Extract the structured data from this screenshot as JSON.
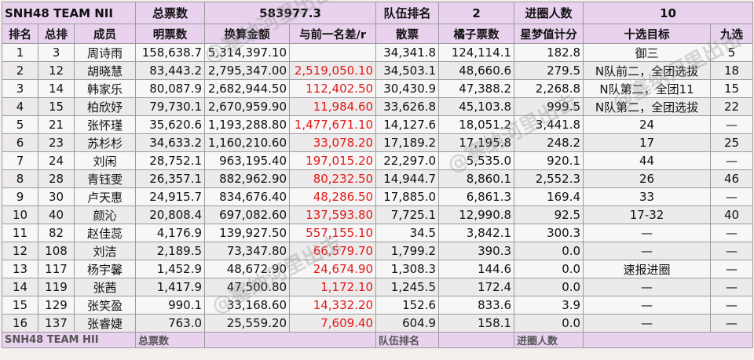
{
  "summary": {
    "team": "SNH48 TEAM NII",
    "total_votes_label": "总票数",
    "total_votes_value": "583977.3",
    "rank_label": "队伍排名",
    "rank_value": "2",
    "entered_label": "进圈人数",
    "entered_value": "10"
  },
  "columns": [
    "排名",
    "总排",
    "成员",
    "明票数",
    "换算金额",
    "与前一名差/r",
    "散票",
    "橘子票数",
    "星梦值计分",
    "十选目标",
    "九选"
  ],
  "rows": [
    [
      "1",
      "3",
      "周诗雨",
      "158,638.7",
      "5,314,397.10",
      "",
      "34,341.8",
      "124,114.1",
      "182.8",
      "御三",
      "5"
    ],
    [
      "2",
      "12",
      "胡晓慧",
      "83,443.2",
      "2,795,347.00",
      "2,519,050.10",
      "34,503.1",
      "48,660.6",
      "279.5",
      "N队前二，全团选拔",
      "18"
    ],
    [
      "3",
      "14",
      "韩家乐",
      "80,087.9",
      "2,682,944.50",
      "112,402.50",
      "30,430.9",
      "47,388.2",
      "2,268.8",
      "N队第二，全团11",
      "15"
    ],
    [
      "4",
      "15",
      "柏欣妤",
      "79,730.1",
      "2,670,959.90",
      "11,984.60",
      "33,626.8",
      "45,103.8",
      "999.5",
      "N队第二，全团选拔",
      "22"
    ],
    [
      "5",
      "21",
      "张怀瑾",
      "35,620.6",
      "1,193,288.80",
      "1,477,671.10",
      "14,127.6",
      "18,051.2",
      "3,441.8",
      "24",
      "—"
    ],
    [
      "6",
      "23",
      "苏杉杉",
      "34,633.2",
      "1,160,210.60",
      "33,078.20",
      "17,189.2",
      "17,195.8",
      "248.2",
      "17",
      "25"
    ],
    [
      "7",
      "24",
      "刘闲",
      "28,752.1",
      "963,195.40",
      "197,015.20",
      "22,297.0",
      "5,535.0",
      "920.1",
      "44",
      "—"
    ],
    [
      "8",
      "28",
      "青钰雯",
      "26,357.1",
      "882,962.90",
      "80,232.50",
      "14,944.7",
      "8,860.1",
      "2,552.3",
      "26",
      "46"
    ],
    [
      "9",
      "30",
      "卢天惠",
      "24,915.7",
      "834,676.40",
      "48,286.50",
      "17,885.0",
      "6,861.3",
      "169.4",
      "33",
      "—"
    ],
    [
      "10",
      "40",
      "颜沁",
      "20,808.4",
      "697,082.60",
      "137,593.80",
      "7,725.1",
      "12,990.8",
      "92.5",
      "17-32",
      "40"
    ],
    [
      "11",
      "82",
      "赵佳蕊",
      "4,176.9",
      "139,927.50",
      "557,155.10",
      "34.5",
      "3,842.1",
      "300.3",
      "—",
      "—"
    ],
    [
      "12",
      "108",
      "刘洁",
      "2,189.5",
      "73,347.80",
      "66,579.70",
      "1,799.2",
      "390.3",
      "0.0",
      "—",
      "—"
    ],
    [
      "13",
      "117",
      "杨宇馨",
      "1,452.9",
      "48,672.90",
      "24,674.90",
      "1,308.3",
      "144.6",
      "0.0",
      "速报进圈",
      "—"
    ],
    [
      "14",
      "119",
      "张茜",
      "1,417.9",
      "47,500.80",
      "1,172.10",
      "1,245.5",
      "172.4",
      "0.0",
      "—",
      "—"
    ],
    [
      "15",
      "129",
      "张笑盈",
      "990.1",
      "33,168.60",
      "14,332.20",
      "152.6",
      "833.6",
      "3.9",
      "—",
      "—"
    ],
    [
      "16",
      "137",
      "张睿婕",
      "763.0",
      "25,559.20",
      "7,609.40",
      "604.9",
      "158.1",
      "0.0",
      "—",
      "—"
    ]
  ],
  "footer_partial": {
    "team": "SNH48 TEAM HII",
    "total_votes_label": "总票数",
    "rank_label": "队伍排名",
    "entered_label": "进圈人数"
  },
  "watermarks": [
    "@塞纳河里出击",
    "@塞纳河里出击",
    "@塞纳河里出击",
    "@塞纳河里出击"
  ],
  "colors": {
    "header_bg": "#e8d2ee",
    "diff_red": "#e21a1a"
  }
}
